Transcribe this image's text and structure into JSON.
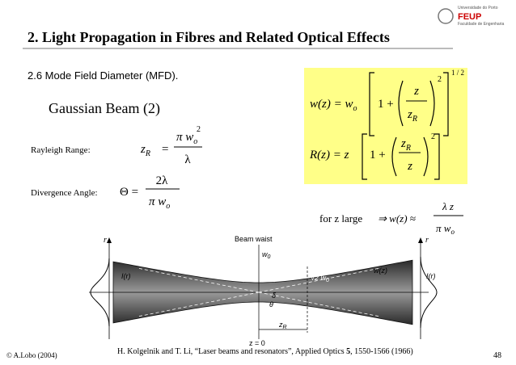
{
  "header": {
    "title": "2. Light Propagation in Fibres and Related Optical Effects",
    "logo": [
      "Universidade do Porto",
      "FEUP",
      "Faculdade de Engenharia"
    ]
  },
  "subtitle": "2.6 Mode Field Diameter (MFD).",
  "heading": "Gaussian Beam (2)",
  "rayleigh": {
    "label": "Rayleigh Range:",
    "lhs": "z",
    "lhs_sub": "R",
    "eq": "=",
    "num": "π w",
    "num_sub": "o",
    "num_sup": "2",
    "den": "λ"
  },
  "divergence": {
    "label": "Divergence Angle:",
    "lhs": "Θ =",
    "num": "2λ",
    "den": "π w",
    "den_sub": "o"
  },
  "width_eq": {
    "lhs": "w(z) = w",
    "lhs_sub": "o",
    "one": "1 +",
    "num": "z",
    "den": "z",
    "den_sub": "R",
    "sup": "2",
    "outer_sup": "1 / 2"
  },
  "radius_eq": {
    "lhs": "R(z) = z",
    "one": "1 +",
    "num": "z",
    "num_sub": "R",
    "den": "z",
    "sup": "2"
  },
  "far_field": {
    "condition": "for z large",
    "arrow": "⇒ w(z) ≈",
    "num": "λ z",
    "den": "π w",
    "den_sub": "o"
  },
  "figure": {
    "labels": {
      "axis_r": "r",
      "axis_r2": "r",
      "beam_waist": "Beam waist",
      "intensity_left": "I(r)",
      "intensity_right": "I(r)",
      "w0": "w",
      "w0_sub": "0",
      "sqrt2w0": "√2 w",
      "sqrt2w0_sub": "0",
      "wz": "w(z)",
      "zR": "z",
      "zR_sub": "R",
      "origin": "z = 0",
      "theta": "θ",
      "delta": "δ"
    }
  },
  "footer": {
    "copyright": "© A.Lobo (2004)",
    "reference": "H. Kolgelnik and T. Li, “Laser beams and resonators”, Applied Optics ",
    "volume": "5",
    "reference_end": ", 1550-1566 (1966)",
    "page": "48"
  }
}
